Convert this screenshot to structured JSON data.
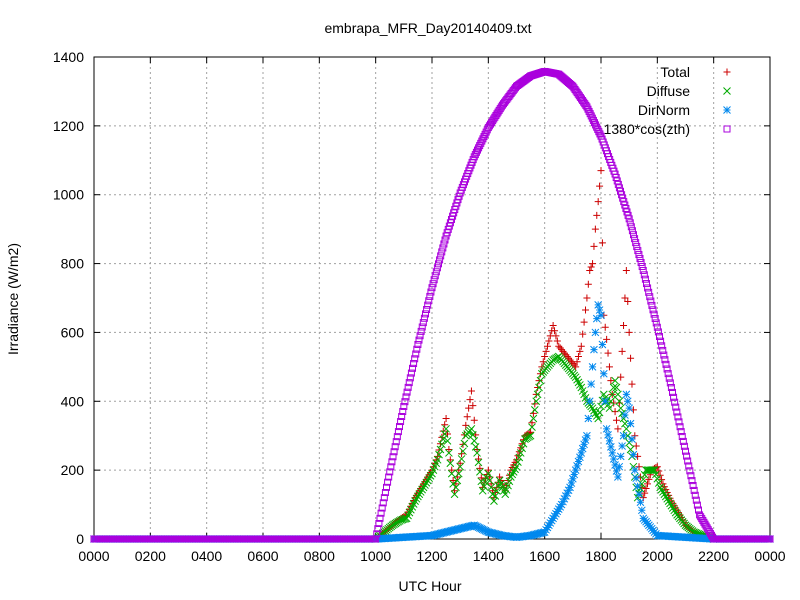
{
  "chart_data": {
    "type": "scatter",
    "title": "embrapa_MFR_Day20140409.txt",
    "xlabel": "UTC Hour",
    "ylabel": "Irradiance (W/m2)",
    "xlim": [
      0,
      24
    ],
    "ylim": [
      0,
      1400
    ],
    "x_ticks": [
      0,
      2,
      4,
      6,
      8,
      10,
      12,
      14,
      16,
      18,
      20,
      22,
      24
    ],
    "x_tick_labels": [
      "0000",
      "0200",
      "0400",
      "0600",
      "0800",
      "1000",
      "1200",
      "1400",
      "1600",
      "1800",
      "2000",
      "2200",
      "0000"
    ],
    "y_ticks": [
      0,
      200,
      400,
      600,
      800,
      1000,
      1200,
      1400
    ],
    "y_tick_labels": [
      "0",
      "200",
      "400",
      "600",
      "800",
      "1000",
      "1200",
      "1400"
    ],
    "grid": true,
    "legend_position": "top-right",
    "series": [
      {
        "name": "Total",
        "color": "#cc0000",
        "marker": "plus",
        "x": [
          10.0,
          10.3,
          10.6,
          10.9,
          11.1,
          11.4,
          11.7,
          12.0,
          12.2,
          12.5,
          12.6,
          12.8,
          13.0,
          13.2,
          13.4,
          13.6,
          13.8,
          14.0,
          14.2,
          14.4,
          14.6,
          14.8,
          15.0,
          15.3,
          15.5,
          15.7,
          15.9,
          16.1,
          16.3,
          16.5,
          16.7,
          16.9,
          17.1,
          17.3,
          17.5,
          17.6,
          17.7,
          17.8,
          17.9,
          18.0,
          18.1,
          18.2,
          18.4,
          18.6,
          18.8,
          18.9,
          19.0,
          19.2,
          19.5,
          19.8,
          20.0,
          20.2,
          20.5,
          20.8,
          21.0,
          21.3,
          21.5,
          21.8,
          22.0
        ],
        "y": [
          0,
          20,
          40,
          60,
          70,
          120,
          160,
          200,
          240,
          350,
          260,
          140,
          220,
          330,
          430,
          260,
          150,
          200,
          120,
          180,
          140,
          200,
          230,
          300,
          310,
          420,
          500,
          560,
          620,
          560,
          540,
          520,
          500,
          560,
          700,
          780,
          800,
          900,
          980,
          1070,
          650,
          580,
          420,
          320,
          620,
          780,
          600,
          300,
          120,
          200,
          210,
          160,
          110,
          70,
          40,
          20,
          10,
          5,
          0
        ]
      },
      {
        "name": "Diffuse",
        "color": "#00aa00",
        "marker": "cross",
        "x": [
          10.0,
          10.3,
          10.6,
          10.9,
          11.1,
          11.4,
          11.7,
          12.0,
          12.2,
          12.5,
          12.6,
          12.8,
          13.0,
          13.2,
          13.4,
          13.6,
          13.8,
          14.0,
          14.2,
          14.4,
          14.6,
          14.8,
          15.0,
          15.3,
          15.5,
          15.7,
          15.9,
          16.1,
          16.3,
          16.5,
          16.7,
          16.9,
          17.1,
          17.3,
          17.5,
          17.7,
          17.9,
          18.1,
          18.3,
          18.5,
          18.7,
          18.9,
          19.1,
          19.3,
          19.6,
          19.9,
          20.1,
          20.4,
          20.7,
          21.0,
          21.3,
          21.6,
          21.9,
          22.0
        ],
        "y": [
          0,
          20,
          40,
          55,
          60,
          110,
          150,
          190,
          230,
          320,
          250,
          130,
          210,
          300,
          320,
          250,
          140,
          190,
          110,
          170,
          130,
          180,
          210,
          290,
          300,
          400,
          480,
          500,
          520,
          530,
          510,
          490,
          470,
          440,
          400,
          380,
          350,
          420,
          380,
          460,
          380,
          320,
          240,
          120,
          200,
          200,
          150,
          110,
          70,
          40,
          20,
          10,
          5,
          0
        ]
      },
      {
        "name": "DirNorm",
        "color": "#0088ee",
        "marker": "star",
        "x": [
          0,
          10.0,
          11.0,
          12.0,
          12.5,
          13.0,
          13.5,
          14.0,
          14.5,
          15.0,
          15.5,
          16.0,
          16.3,
          16.6,
          16.9,
          17.1,
          17.3,
          17.5,
          17.6,
          17.7,
          17.8,
          17.9,
          18.0,
          18.1,
          18.2,
          18.4,
          18.6,
          18.8,
          18.9,
          19.0,
          19.2,
          19.5,
          20.0,
          21.0,
          22.0,
          24.0
        ],
        "y": [
          0,
          0,
          5,
          10,
          20,
          30,
          40,
          20,
          10,
          5,
          10,
          20,
          60,
          100,
          150,
          200,
          250,
          300,
          400,
          500,
          600,
          680,
          650,
          480,
          320,
          250,
          180,
          300,
          420,
          380,
          200,
          60,
          10,
          5,
          0,
          0
        ]
      },
      {
        "name": "1380*cos(zth)",
        "color": "#aa00dd",
        "marker": "square",
        "x": [
          0,
          2,
          4,
          6,
          8,
          10.0,
          10.5,
          11.0,
          11.5,
          12.0,
          12.5,
          13.0,
          13.5,
          14.0,
          14.5,
          15.0,
          15.5,
          16.0,
          16.5,
          17.0,
          17.5,
          18.0,
          18.5,
          19.0,
          19.5,
          20.0,
          20.5,
          21.0,
          21.5,
          22.0,
          22.5,
          24.0
        ],
        "y": [
          0,
          0,
          0,
          0,
          0,
          0,
          195,
          385,
          565,
          730,
          880,
          1005,
          1110,
          1195,
          1260,
          1315,
          1345,
          1358,
          1350,
          1315,
          1255,
          1170,
          1060,
          930,
          780,
          615,
          440,
          255,
          70,
          0,
          0,
          0
        ]
      }
    ]
  }
}
